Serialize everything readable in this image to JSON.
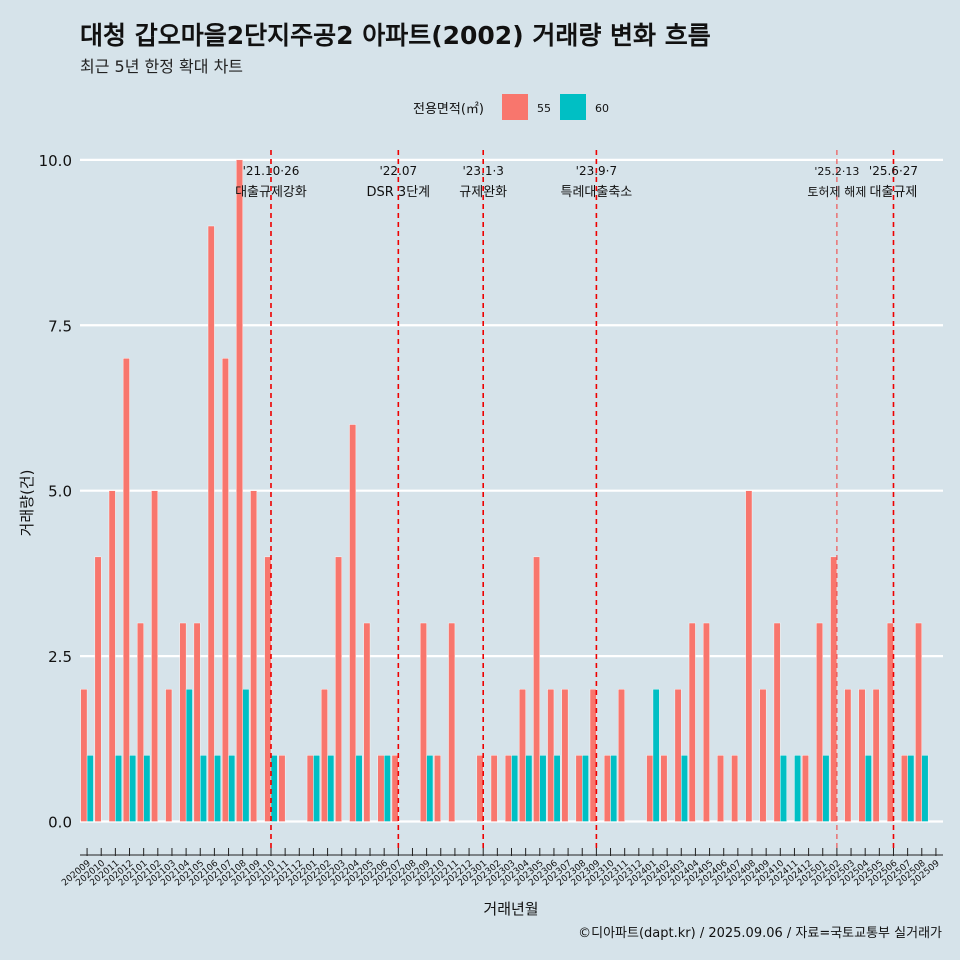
{
  "title": "대청 갑오마을2단지주공2 아파트(2002) 거래량 변화 흐름",
  "subtitle": "최근 5년 한정 확대 차트",
  "caption": "©디아파트(dapt.kr) / 2025.09.06 / 자료=국토교통부 실거래가",
  "chart_data": {
    "type": "bar",
    "title": "대청 갑오마을2단지주공2 아파트(2002) 거래량 변화 흐름",
    "subtitle": "최근 5년 한정 확대 차트",
    "xlabel": "거래년월",
    "ylabel": "거래량(건)",
    "ylim": [
      -0.4,
      10.3
    ],
    "yticks": [
      0.0,
      2.5,
      5.0,
      7.5,
      10.0
    ],
    "ytick_labels": [
      "0.0",
      "2.5",
      "5.0",
      "7.5",
      "10.0"
    ],
    "grid": true,
    "legend": {
      "title": "전용면적(㎡)",
      "position": "top"
    },
    "categories": [
      "202009",
      "202010",
      "202011",
      "202012",
      "202101",
      "202102",
      "202103",
      "202104",
      "202105",
      "202106",
      "202107",
      "202108",
      "202109",
      "202110",
      "202111",
      "202112",
      "202201",
      "202202",
      "202203",
      "202204",
      "202205",
      "202206",
      "202207",
      "202208",
      "202209",
      "202210",
      "202211",
      "202212",
      "202301",
      "202302",
      "202303",
      "202304",
      "202305",
      "202306",
      "202307",
      "202308",
      "202309",
      "202310",
      "202311",
      "202312",
      "202401",
      "202402",
      "202403",
      "202404",
      "202405",
      "202406",
      "202407",
      "202408",
      "202409",
      "202410",
      "202411",
      "202412",
      "202501",
      "202502",
      "202503",
      "202504",
      "202505",
      "202506",
      "202507",
      "202508",
      "202509"
    ],
    "series": [
      {
        "name": "55",
        "color": "#f8766d",
        "values": [
          2,
          4,
          5,
          7,
          3,
          5,
          2,
          3,
          3,
          9,
          7,
          10,
          5,
          4,
          1,
          0,
          1,
          2,
          4,
          6,
          3,
          1,
          1,
          0,
          3,
          1,
          3,
          0,
          1,
          1,
          1,
          2,
          4,
          2,
          2,
          1,
          2,
          1,
          2,
          0,
          1,
          1,
          2,
          3,
          3,
          1,
          1,
          5,
          2,
          3,
          0,
          1,
          3,
          4,
          2,
          2,
          2,
          3,
          1,
          3,
          0
        ]
      },
      {
        "name": "60",
        "color": "#00bfc4",
        "values": [
          1,
          0,
          1,
          1,
          1,
          0,
          0,
          2,
          1,
          1,
          1,
          2,
          0,
          1,
          0,
          0,
          1,
          1,
          0,
          1,
          0,
          1,
          0,
          0,
          1,
          0,
          0,
          0,
          0,
          0,
          1,
          1,
          1,
          1,
          0,
          1,
          0,
          1,
          0,
          0,
          2,
          0,
          1,
          0,
          0,
          0,
          0,
          0,
          0,
          1,
          1,
          0,
          1,
          0,
          0,
          1,
          0,
          0,
          1,
          1,
          0
        ]
      }
    ],
    "annotations": [
      {
        "x": "202110",
        "date": "'21.10·26",
        "label": "대출규제강화",
        "style": "dashed"
      },
      {
        "x": "202207",
        "date": "'22.07",
        "label": "DSR 3단계",
        "style": "dashed"
      },
      {
        "x": "202301",
        "date": "'23.1·3",
        "label": "규제완화",
        "style": "dashed"
      },
      {
        "x": "202309",
        "date": "'23.9·7",
        "label": "특례대출축소",
        "style": "dashed"
      },
      {
        "x": "202502",
        "date": "'25.2·13",
        "label": "토허제 해제",
        "style": "dashed-thin"
      },
      {
        "x": "202506",
        "date": "'25.6·27",
        "label": "대출규제",
        "style": "dashed"
      }
    ]
  }
}
